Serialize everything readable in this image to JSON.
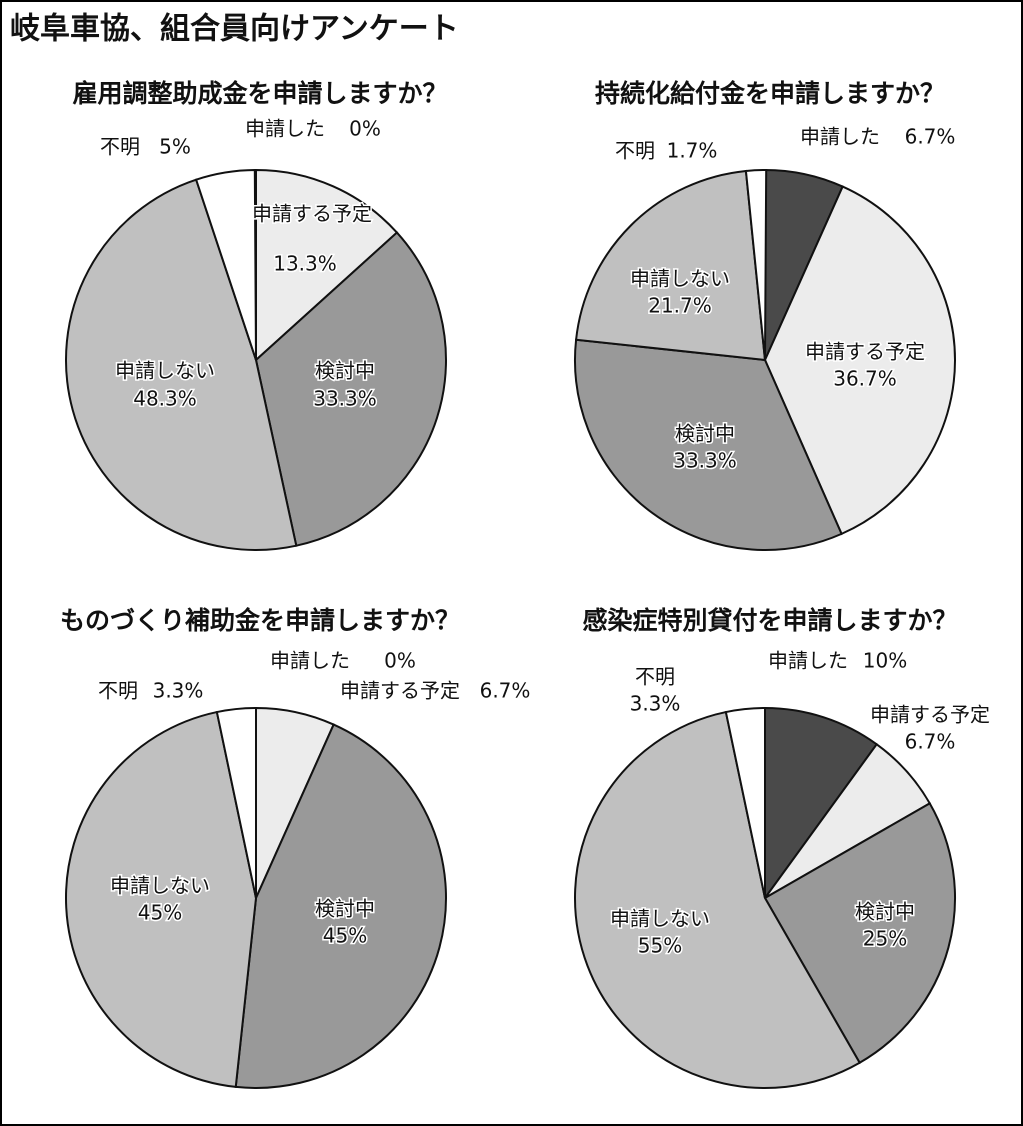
{
  "title": "岐阜車協、組合員向けアンケート",
  "chart_data": [
    {
      "type": "pie",
      "title": "雇用調整助成金を申請しますか？",
      "categories": [
        "申請した",
        "申請する予定",
        "検討中",
        "申請しない",
        "不明"
      ],
      "values": [
        0,
        13.3,
        33.3,
        48.3,
        5
      ],
      "value_labels": [
        "0%",
        "13.3%",
        "33.3%",
        "48.3%",
        "5%"
      ],
      "colors": [
        "#4a4a4a",
        "#ececec",
        "#999999",
        "#c0c0c0",
        "#ffffff"
      ]
    },
    {
      "type": "pie",
      "title": "持続化給付金を申請しますか？",
      "categories": [
        "申請した",
        "申請する予定",
        "検討中",
        "申請しない",
        "不明"
      ],
      "values": [
        6.7,
        36.7,
        33.3,
        21.7,
        1.7
      ],
      "value_labels": [
        "6.7%",
        "36.7%",
        "33.3%",
        "21.7%",
        "1.7%"
      ],
      "colors": [
        "#4a4a4a",
        "#ececec",
        "#999999",
        "#c0c0c0",
        "#ffffff"
      ]
    },
    {
      "type": "pie",
      "title": "ものづくり補助金を申請しますか？",
      "categories": [
        "申請した",
        "申請する予定",
        "検討中",
        "申請しない",
        "不明"
      ],
      "values": [
        0,
        6.7,
        45,
        45,
        3.3
      ],
      "value_labels": [
        "0%",
        "6.7%",
        "45%",
        "45%",
        "3.3%"
      ],
      "colors": [
        "#4a4a4a",
        "#ececec",
        "#999999",
        "#c0c0c0",
        "#ffffff"
      ]
    },
    {
      "type": "pie",
      "title": "感染症特別貸付を申請しますか？",
      "categories": [
        "申請した",
        "申請する予定",
        "検討中",
        "申請しない",
        "不明"
      ],
      "values": [
        10,
        6.7,
        25,
        55,
        3.3
      ],
      "value_labels": [
        "10%",
        "6.7%",
        "25%",
        "55%",
        "3.3%"
      ],
      "colors": [
        "#4a4a4a",
        "#ececec",
        "#999999",
        "#c0c0c0",
        "#ffffff"
      ]
    }
  ]
}
